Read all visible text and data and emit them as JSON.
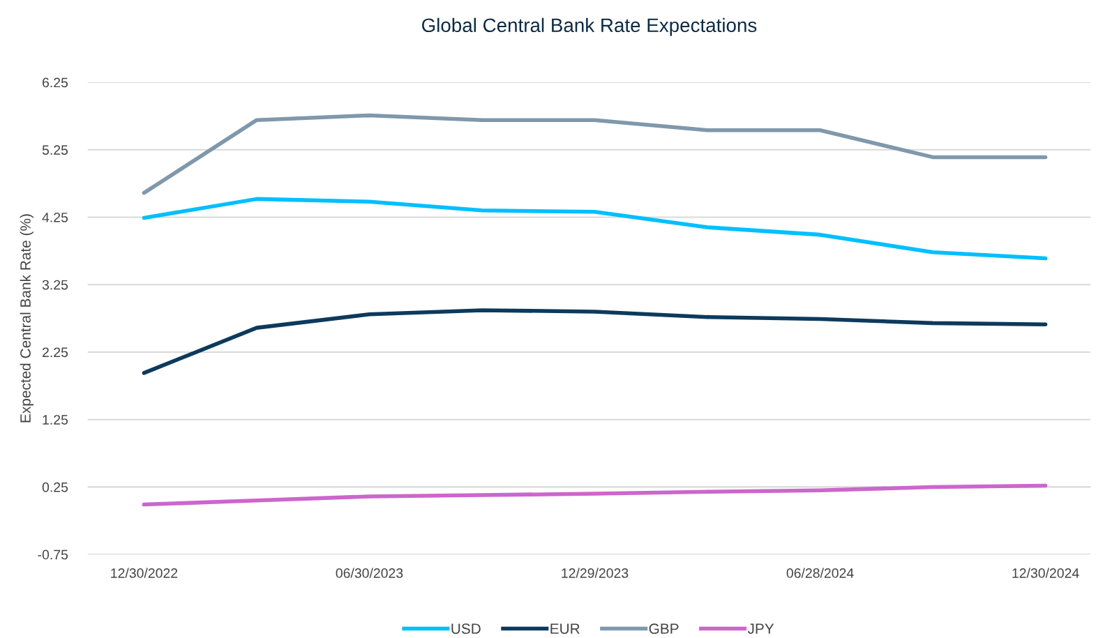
{
  "chart_data": {
    "type": "line",
    "title": "Global Central Bank Rate Expectations",
    "ylabel": "Expected Central Bank Rate (%)",
    "categories": [
      "12/30/2022",
      null,
      "06/30/2023",
      null,
      "12/29/2023",
      null,
      "06/28/2024",
      null,
      "12/30/2024"
    ],
    "series": [
      {
        "name": "USD",
        "color": "#00bfff",
        "values": [
          4.24,
          4.52,
          4.48,
          4.35,
          4.33,
          4.1,
          3.99,
          3.73,
          3.64
        ]
      },
      {
        "name": "EUR",
        "color": "#0d3a5c",
        "values": [
          1.94,
          2.61,
          2.81,
          2.87,
          2.85,
          2.77,
          2.74,
          2.68,
          2.66
        ]
      },
      {
        "name": "GBP",
        "color": "#7f98ab",
        "values": [
          4.61,
          5.69,
          5.76,
          5.69,
          5.69,
          5.54,
          5.54,
          5.14,
          5.14
        ]
      },
      {
        "name": "JPY",
        "color": "#cc66cc",
        "values": [
          -0.01,
          0.05,
          0.11,
          0.13,
          0.15,
          0.18,
          0.2,
          0.25,
          0.27
        ]
      }
    ],
    "ylim": [
      -0.75,
      6.25
    ],
    "yticks": [
      6.25,
      5.25,
      4.25,
      3.25,
      2.25,
      1.25,
      0.25,
      -0.75
    ],
    "grid": "y",
    "legend": "bottom",
    "marker": "none",
    "line_style": "solid"
  }
}
